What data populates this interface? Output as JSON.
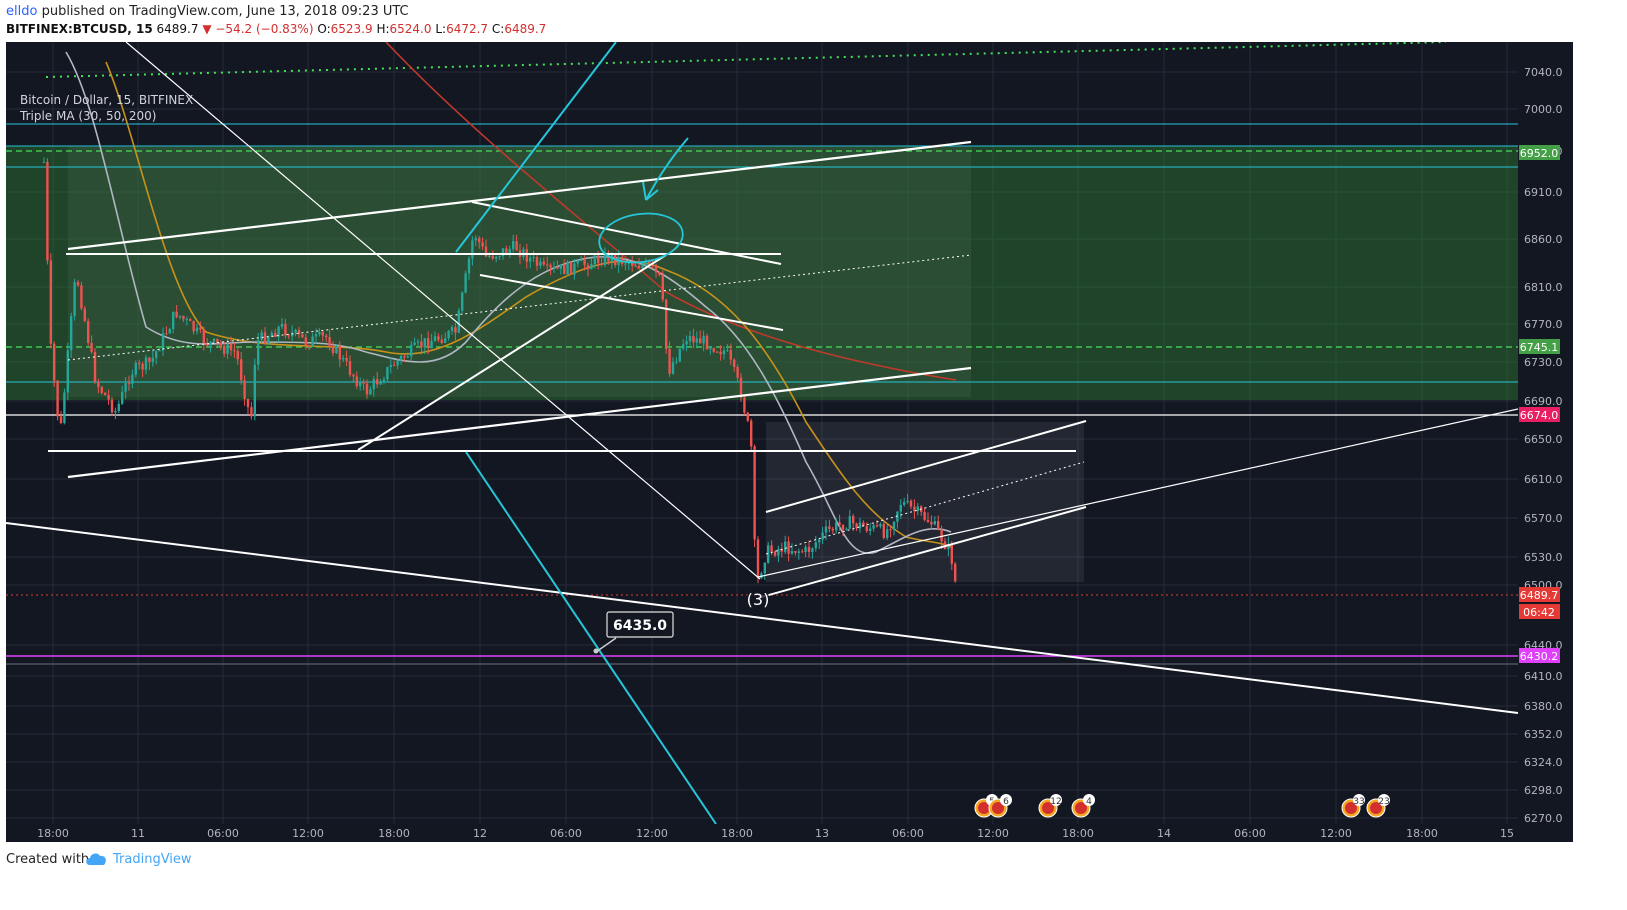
{
  "header": {
    "user": "elldo",
    "published": "published on TradingView.com, June 13, 2018 09:23 UTC",
    "symbol": "BITFINEX:BTCUSD, 15",
    "last": "6489.7",
    "change": "▼ −54.2 (−0.83%)",
    "o_label": "O:",
    "o": "6523.9",
    "h_label": "H:",
    "h": "6524.0",
    "l_label": "L:",
    "l": "6472.7",
    "c_label": "C:",
    "c": "6489.7"
  },
  "chart": {
    "symbol_label": "Bitcoin / Dollar, 15, BITFINEX",
    "study_label": "Triple MA (30, 50, 200)",
    "callout": "6435.0",
    "wave_label": "(3)",
    "price_ticks": [
      "7040.0",
      "7000.0",
      "6960.0",
      "6910.0",
      "6860.0",
      "6810.0",
      "6770.0",
      "6730.0",
      "6690.0",
      "6650.0",
      "6610.0",
      "6570.0",
      "6530.0",
      "6500.0",
      "6440.0",
      "6410.0",
      "6380.0",
      "6352.0",
      "6324.0",
      "6298.0",
      "6270.0"
    ],
    "price_badges": [
      {
        "label": "6952.0",
        "color": "#43a047"
      },
      {
        "label": "6745.1",
        "color": "#43a047"
      },
      {
        "label": "6674.0",
        "color": "#e91e63"
      },
      {
        "label": "6489.7",
        "color": "#e53935"
      },
      {
        "label": "06:42",
        "color": "#e53935"
      },
      {
        "label": "6430.2",
        "color": "#e040fb"
      }
    ],
    "time_ticks": [
      "18:00",
      "11",
      "06:00",
      "12:00",
      "18:00",
      "12",
      "06:00",
      "12:00",
      "18:00",
      "13",
      "06:00",
      "12:00",
      "18:00",
      "14",
      "06:00",
      "12:00",
      "18:00",
      "15"
    ],
    "events": [
      "5",
      "6",
      "12",
      "4",
      "33",
      "23"
    ],
    "colors": {
      "background": "#131722",
      "up": "#26a69a",
      "down": "#ef5350",
      "ma30": "#b0b7c3",
      "ma50": "#c7921a",
      "ma200": "#c0392b",
      "zone": "#2e7d32",
      "cyan": "#26c6da"
    }
  },
  "footer": {
    "created_with": "Created with",
    "brand": "TradingView"
  }
}
